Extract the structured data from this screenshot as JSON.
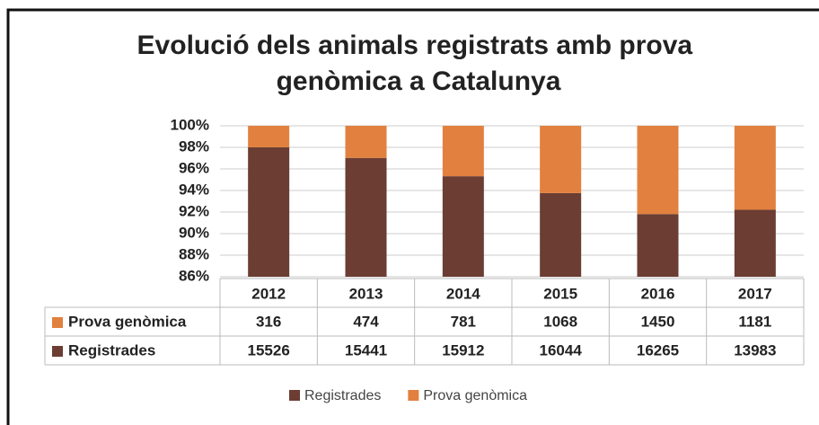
{
  "chart_data": {
    "type": "bar",
    "stacking": "percent",
    "title": "Evolució dels animals registrats amb prova genòmica a Catalunya",
    "categories": [
      "2012",
      "2013",
      "2014",
      "2015",
      "2016",
      "2017"
    ],
    "series": [
      {
        "name": "Registrades",
        "color": "#6b3d33",
        "values": [
          15526,
          15441,
          15912,
          16044,
          16265,
          13983
        ]
      },
      {
        "name": "Prova genòmica",
        "color": "#e2803f",
        "values": [
          316,
          474,
          781,
          1068,
          1450,
          1181
        ]
      }
    ],
    "ylim": [
      86,
      100
    ],
    "yticks": [
      {
        "value": 86,
        "label": "86%"
      },
      {
        "value": 88,
        "label": "88%"
      },
      {
        "value": 90,
        "label": "90%"
      },
      {
        "value": 92,
        "label": "92%"
      },
      {
        "value": 94,
        "label": "94%"
      },
      {
        "value": 96,
        "label": "96%"
      },
      {
        "value": 98,
        "label": "98%"
      },
      {
        "value": 100,
        "label": "100%"
      }
    ],
    "grid": true,
    "legend": "bottom",
    "data_table": true
  }
}
